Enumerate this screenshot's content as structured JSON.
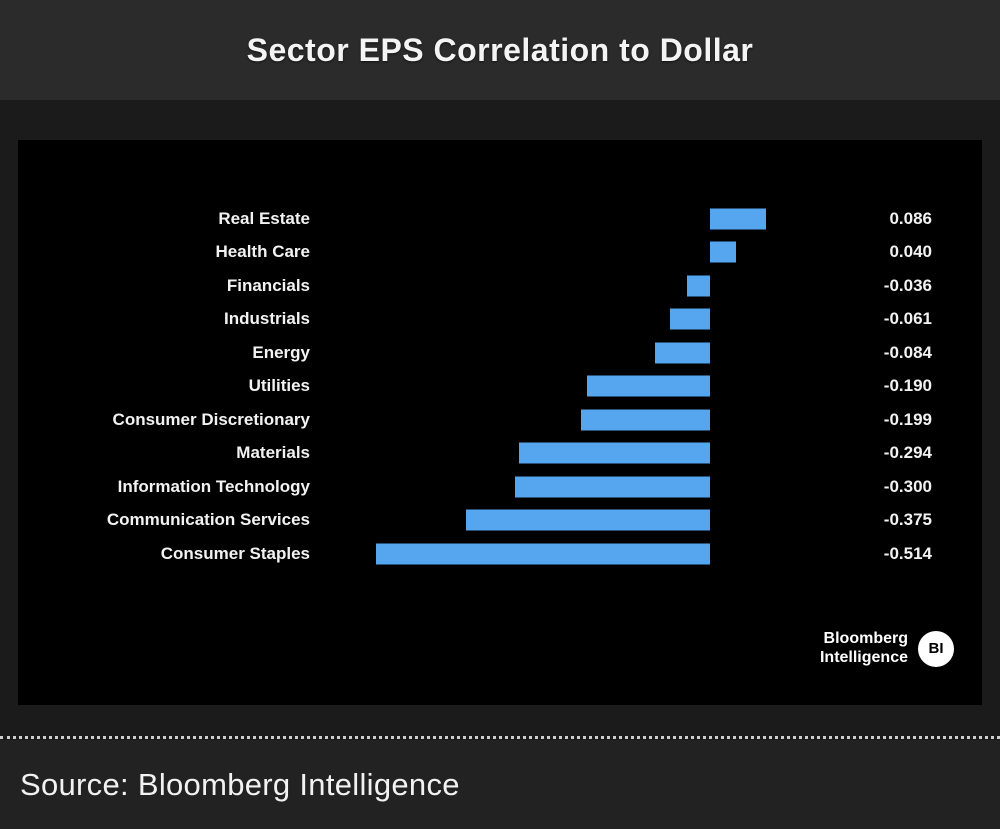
{
  "header": {
    "title": "Sector EPS Correlation to Dollar"
  },
  "chart_data": {
    "type": "bar",
    "orientation": "horizontal",
    "title": "Sector EPS Correlation to Dollar",
    "categories": [
      "Real Estate",
      "Health Care",
      "Financials",
      "Industrials",
      "Energy",
      "Utilities",
      "Consumer Discretionary",
      "Materials",
      "Information Technology",
      "Communication Services",
      "Consumer Staples"
    ],
    "values": [
      0.086,
      0.04,
      -0.036,
      -0.061,
      -0.084,
      -0.19,
      -0.199,
      -0.294,
      -0.3,
      -0.375,
      -0.514
    ],
    "value_labels": [
      "0.086",
      "0.040",
      "-0.036",
      "-0.061",
      "-0.084",
      "-0.190",
      "-0.199",
      "-0.294",
      "-0.300",
      "-0.375",
      "-0.514"
    ],
    "xlabel": "",
    "ylabel": "",
    "xlim": [
      -0.59,
      0.14
    ],
    "grid": false,
    "legend": "none",
    "bar_color": "#55a6ee",
    "background": "#000000"
  },
  "logo": {
    "line1": "Bloomberg",
    "line2": "Intelligence",
    "badge": "BI"
  },
  "footer": {
    "source": "Source: Bloomberg Intelligence"
  },
  "colors": {
    "page_bg": "#1b1b1b",
    "titlebar_bg": "#2b2b2b",
    "chart_bg": "#000000",
    "text": "#f2f2f2",
    "bar": "#55a6ee"
  }
}
